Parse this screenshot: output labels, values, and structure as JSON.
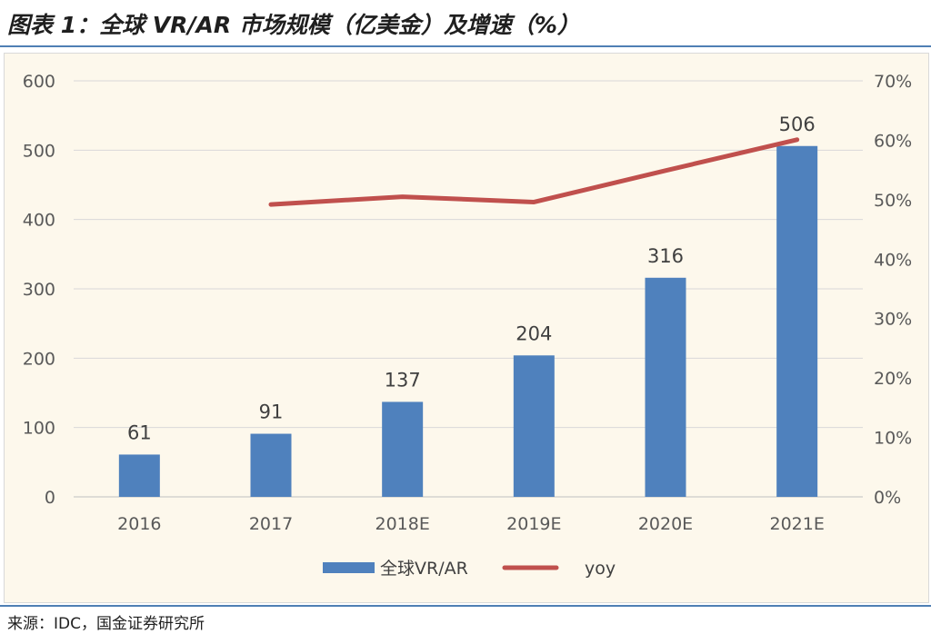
{
  "figure": {
    "title": "图表 1：全球 VR/AR 市场规模（亿美金）及增速（%）",
    "source": "来源：IDC，国金证券研究所"
  },
  "chart_data": {
    "type": "bar",
    "categories": [
      "2016",
      "2017",
      "2018E",
      "2019E",
      "2020E",
      "2021E"
    ],
    "series": [
      {
        "name": "全球VR/AR",
        "type": "bar",
        "axis": "left",
        "color": "#4f81bd",
        "values": [
          61,
          91,
          137,
          204,
          316,
          506
        ],
        "labels": [
          "61",
          "91",
          "137",
          "204",
          "316",
          "506"
        ]
      },
      {
        "name": "yoy",
        "type": "line",
        "axis": "right",
        "color": "#c0504d",
        "values": [
          null,
          49.2,
          50.5,
          49.6,
          54.9,
          60.1
        ]
      }
    ],
    "y_left": {
      "min": 0,
      "max": 600,
      "ticks": [
        "0",
        "100",
        "200",
        "300",
        "400",
        "500",
        "600"
      ]
    },
    "y_right": {
      "min": 0,
      "max": 70,
      "ticks": [
        "0%",
        "10%",
        "20%",
        "30%",
        "40%",
        "50%",
        "60%",
        "70%"
      ]
    },
    "grid": true,
    "legend": "bottom"
  }
}
